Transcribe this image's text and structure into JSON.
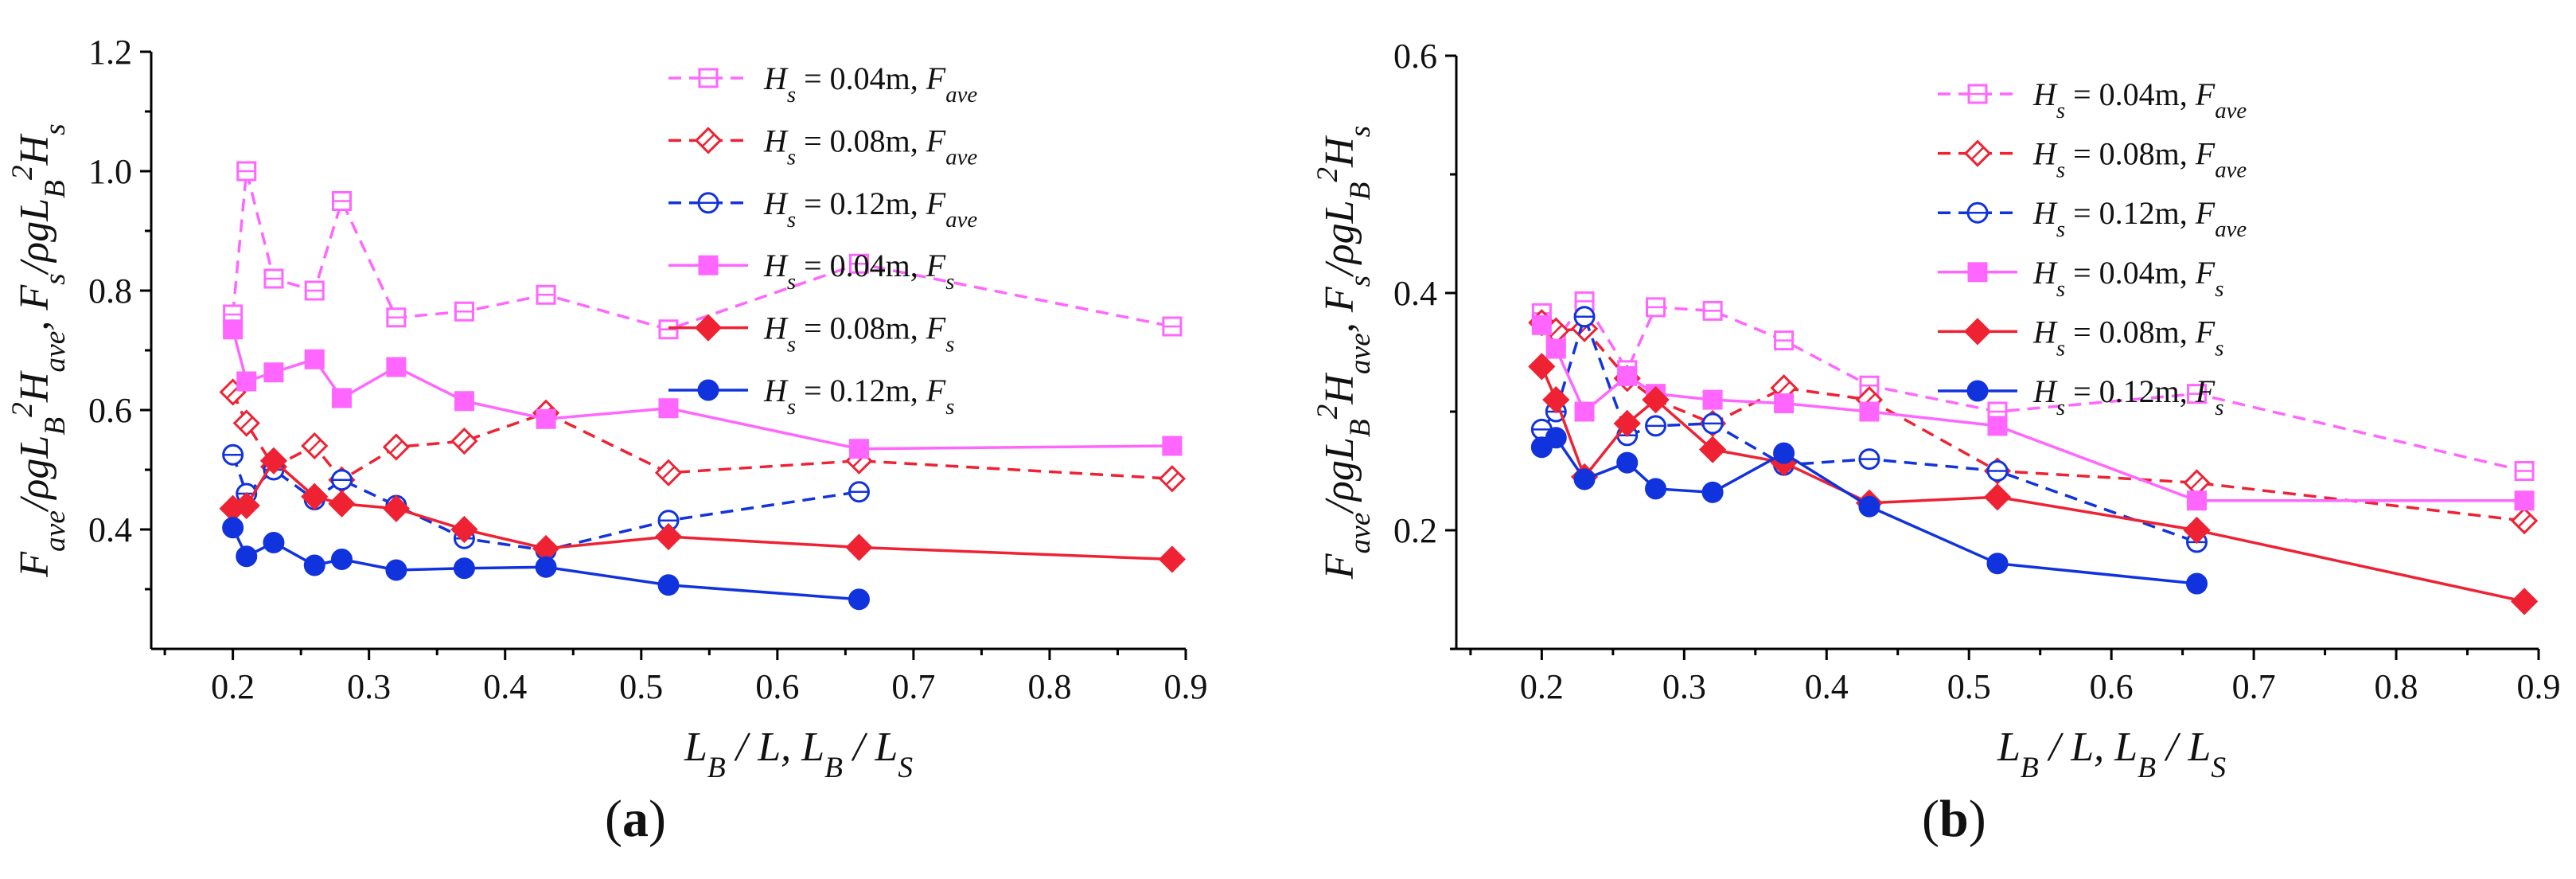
{
  "chart_data": [
    {
      "type": "line",
      "panel": "a",
      "panel_label": "(a)",
      "xlabel": "L_B / L, L_B / L_S",
      "ylabel": "F_ave/ρgL_B²H_ave, F_s/ρgL_B²H_s",
      "xlim": [
        0.14,
        0.9
      ],
      "ylim": [
        0.2,
        1.2
      ],
      "xticks": [
        0.2,
        0.3,
        0.4,
        0.5,
        0.6,
        0.7,
        0.8,
        0.9
      ],
      "yticks": [
        0.4,
        0.6,
        0.8,
        1.0,
        1.2
      ],
      "xtick_labels": [
        "0.2",
        "0.3",
        "0.4",
        "0.5",
        "0.6",
        "0.7",
        "0.8",
        "0.9"
      ],
      "ytick_labels": [
        "0.4",
        "0.6",
        "0.8",
        "1.0",
        "1.2"
      ],
      "legend_position": "top-right",
      "series": [
        {
          "name": "Hs = 0.04m, Fave",
          "hs": "0.04m",
          "qty": "ave",
          "color": "#ff66ff",
          "dashed": true,
          "marker": "square-open",
          "x": [
            0.2,
            0.21,
            0.23,
            0.26,
            0.28,
            0.32,
            0.37,
            0.43,
            0.52,
            0.66,
            0.89
          ],
          "y": [
            0.76,
            1.0,
            0.82,
            0.8,
            0.95,
            0.755,
            0.765,
            0.793,
            0.735,
            0.845,
            0.74
          ]
        },
        {
          "name": "Hs = 0.08m, Fave",
          "hs": "0.08m",
          "qty": "ave",
          "color": "#ee2233",
          "dashed": true,
          "marker": "diamond-open",
          "x": [
            0.2,
            0.21,
            0.23,
            0.26,
            0.28,
            0.32,
            0.37,
            0.43,
            0.52,
            0.66,
            0.89
          ],
          "y": [
            0.63,
            0.578,
            0.505,
            0.54,
            0.483,
            0.538,
            0.548,
            0.595,
            0.495,
            0.515,
            0.485
          ]
        },
        {
          "name": "Hs = 0.12m, Fave",
          "hs": "0.12m",
          "qty": "ave",
          "color": "#1133dd",
          "dashed": true,
          "marker": "circle-open",
          "x": [
            0.2,
            0.21,
            0.23,
            0.26,
            0.28,
            0.32,
            0.37,
            0.43,
            0.52,
            0.66
          ],
          "y": [
            0.525,
            0.46,
            0.5,
            0.45,
            0.483,
            0.44,
            0.385,
            0.365,
            0.415,
            0.463
          ]
        },
        {
          "name": "Hs = 0.04m, Fs",
          "hs": "0.04m",
          "qty": "s",
          "color": "#ff66ff",
          "dashed": false,
          "marker": "square-filled",
          "x": [
            0.2,
            0.21,
            0.23,
            0.26,
            0.28,
            0.32,
            0.37,
            0.43,
            0.52,
            0.66,
            0.89
          ],
          "y": [
            0.735,
            0.648,
            0.663,
            0.685,
            0.62,
            0.672,
            0.615,
            0.585,
            0.603,
            0.535,
            0.54
          ]
        },
        {
          "name": "Hs = 0.08m, Fs",
          "hs": "0.08m",
          "qty": "s",
          "color": "#ee2233",
          "dashed": false,
          "marker": "diamond-filled",
          "x": [
            0.2,
            0.21,
            0.23,
            0.26,
            0.28,
            0.32,
            0.37,
            0.43,
            0.52,
            0.66,
            0.89
          ],
          "y": [
            0.435,
            0.44,
            0.515,
            0.455,
            0.443,
            0.435,
            0.4,
            0.368,
            0.388,
            0.37,
            0.35
          ]
        },
        {
          "name": "Hs = 0.12m, Fs",
          "hs": "0.12m",
          "qty": "s",
          "color": "#1133dd",
          "dashed": false,
          "marker": "circle-filled",
          "x": [
            0.2,
            0.21,
            0.23,
            0.26,
            0.28,
            0.32,
            0.37,
            0.43,
            0.52,
            0.66
          ],
          "y": [
            0.403,
            0.355,
            0.378,
            0.34,
            0.35,
            0.332,
            0.335,
            0.337,
            0.307,
            0.283
          ]
        }
      ]
    },
    {
      "type": "line",
      "panel": "b",
      "panel_label": "(b)",
      "xlabel": "L_B / L, L_B / L_S",
      "ylabel": "F_ave/ρgL_B²H_ave, F_s/ρgL_B²H_s",
      "xlim": [
        0.14,
        0.9
      ],
      "ylim": [
        0.1,
        0.6
      ],
      "xticks": [
        0.2,
        0.3,
        0.4,
        0.5,
        0.6,
        0.7,
        0.8,
        0.9
      ],
      "yticks": [
        0.2,
        0.4,
        0.6
      ],
      "xtick_labels": [
        "0.2",
        "0.3",
        "0.4",
        "0.5",
        "0.6",
        "0.7",
        "0.8",
        "0.9"
      ],
      "ytick_labels": [
        "0.2",
        "0.4",
        "0.6"
      ],
      "legend_position": "top-right",
      "series": [
        {
          "name": "Hs = 0.04m, Fave",
          "hs": "0.04m",
          "qty": "ave",
          "color": "#ff66ff",
          "dashed": true,
          "marker": "square-open",
          "x": [
            0.2,
            0.21,
            0.23,
            0.26,
            0.28,
            0.32,
            0.37,
            0.43,
            0.52,
            0.66,
            0.89
          ],
          "y": [
            0.383,
            0.36,
            0.393,
            0.335,
            0.388,
            0.385,
            0.36,
            0.322,
            0.3,
            0.315,
            0.25
          ]
        },
        {
          "name": "Hs = 0.08m, Fave",
          "hs": "0.08m",
          "qty": "ave",
          "color": "#ee2233",
          "dashed": true,
          "marker": "diamond-open",
          "x": [
            0.2,
            0.21,
            0.23,
            0.26,
            0.28,
            0.32,
            0.37,
            0.43,
            0.52,
            0.66,
            0.89
          ],
          "y": [
            0.375,
            0.368,
            0.37,
            0.328,
            0.31,
            0.29,
            0.32,
            0.31,
            0.25,
            0.24,
            0.208
          ]
        },
        {
          "name": "Hs = 0.12m, Fave",
          "hs": "0.12m",
          "qty": "ave",
          "color": "#1133dd",
          "dashed": true,
          "marker": "circle-open",
          "x": [
            0.2,
            0.21,
            0.23,
            0.26,
            0.28,
            0.32,
            0.37,
            0.43,
            0.52,
            0.66
          ],
          "y": [
            0.285,
            0.3,
            0.38,
            0.28,
            0.288,
            0.29,
            0.255,
            0.26,
            0.25,
            0.19
          ]
        },
        {
          "name": "Hs = 0.04m, Fs",
          "hs": "0.04m",
          "qty": "s",
          "color": "#ff66ff",
          "dashed": false,
          "marker": "square-filled",
          "x": [
            0.2,
            0.21,
            0.23,
            0.26,
            0.28,
            0.32,
            0.37,
            0.43,
            0.52,
            0.66,
            0.89
          ],
          "y": [
            0.373,
            0.353,
            0.3,
            0.33,
            0.315,
            0.31,
            0.307,
            0.3,
            0.288,
            0.225,
            0.225
          ]
        },
        {
          "name": "Hs = 0.08m, Fs",
          "hs": "0.08m",
          "qty": "s",
          "color": "#ee2233",
          "dashed": false,
          "marker": "diamond-filled",
          "x": [
            0.2,
            0.21,
            0.23,
            0.26,
            0.28,
            0.32,
            0.37,
            0.43,
            0.52,
            0.66,
            0.89
          ],
          "y": [
            0.338,
            0.31,
            0.245,
            0.29,
            0.31,
            0.268,
            0.257,
            0.223,
            0.228,
            0.2,
            0.14
          ]
        },
        {
          "name": "Hs = 0.12m, Fs",
          "hs": "0.12m",
          "qty": "s",
          "color": "#1133dd",
          "dashed": false,
          "marker": "circle-filled",
          "x": [
            0.2,
            0.21,
            0.23,
            0.26,
            0.28,
            0.32,
            0.37,
            0.43,
            0.52,
            0.66
          ],
          "y": [
            0.27,
            0.278,
            0.243,
            0.257,
            0.235,
            0.232,
            0.265,
            0.22,
            0.172,
            0.155
          ]
        }
      ]
    }
  ]
}
